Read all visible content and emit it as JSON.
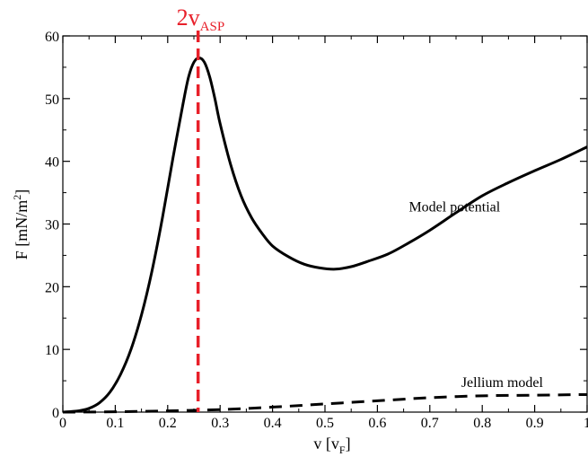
{
  "chart_data": {
    "type": "line",
    "xlabel": "v [v",
    "xlabel_sub": "F",
    "xlabel_close": "]",
    "ylabel": "F [mN/m",
    "ylabel_sup": "2",
    "ylabel_close": "]",
    "xlim": [
      0,
      1
    ],
    "ylim": [
      0,
      60
    ],
    "xticks": [
      0,
      0.1,
      0.2,
      0.3,
      0.4,
      0.5,
      0.6,
      0.7,
      0.8,
      0.9,
      1
    ],
    "xtick_labels": [
      "0",
      "0.1",
      "0.2",
      "0.3",
      "0.4",
      "0.5",
      "0.6",
      "0.7",
      "0.8",
      "0.9",
      "1"
    ],
    "yticks": [
      0,
      10,
      20,
      30,
      40,
      50,
      60
    ],
    "ytick_labels": [
      "0",
      "10",
      "20",
      "30",
      "40",
      "50",
      "60"
    ],
    "grid": false,
    "series": [
      {
        "name": "Model potential",
        "style": "solid",
        "color": "#000000",
        "x": [
          0,
          0.03,
          0.05,
          0.07,
          0.09,
          0.11,
          0.13,
          0.15,
          0.17,
          0.19,
          0.21,
          0.23,
          0.24,
          0.25,
          0.26,
          0.27,
          0.28,
          0.29,
          0.3,
          0.32,
          0.34,
          0.36,
          0.38,
          0.4,
          0.43,
          0.46,
          0.49,
          0.52,
          0.55,
          0.58,
          0.62,
          0.66,
          0.7,
          0.75,
          0.8,
          0.85,
          0.9,
          0.95,
          1.0
        ],
        "y": [
          0,
          0.2,
          0.6,
          1.5,
          3.2,
          6,
          10,
          15.5,
          22.5,
          31,
          40.5,
          49.5,
          53.5,
          55.8,
          56.5,
          55.8,
          53.5,
          50,
          46,
          39.5,
          34.5,
          31,
          28.5,
          26.5,
          24.8,
          23.6,
          23,
          22.8,
          23.2,
          24,
          25.2,
          27,
          29,
          31.8,
          34.5,
          36.6,
          38.5,
          40.3,
          42.3
        ]
      },
      {
        "name": "Jellium model",
        "style": "dashed",
        "color": "#000000",
        "x": [
          0,
          0.1,
          0.2,
          0.3,
          0.4,
          0.5,
          0.6,
          0.7,
          0.8,
          0.9,
          1.0
        ],
        "y": [
          0,
          0.05,
          0.2,
          0.4,
          0.8,
          1.3,
          1.8,
          2.3,
          2.6,
          2.7,
          2.8
        ]
      }
    ],
    "annotations": [
      {
        "text": "Model potential",
        "x": 0.66,
        "y": 32
      },
      {
        "text": "Jellium model",
        "x": 0.76,
        "y": 4
      }
    ],
    "vline": {
      "x": 0.258,
      "color": "#e8202a",
      "style": "dashed",
      "label_main": "2v",
      "label_sub": "ASP"
    }
  }
}
